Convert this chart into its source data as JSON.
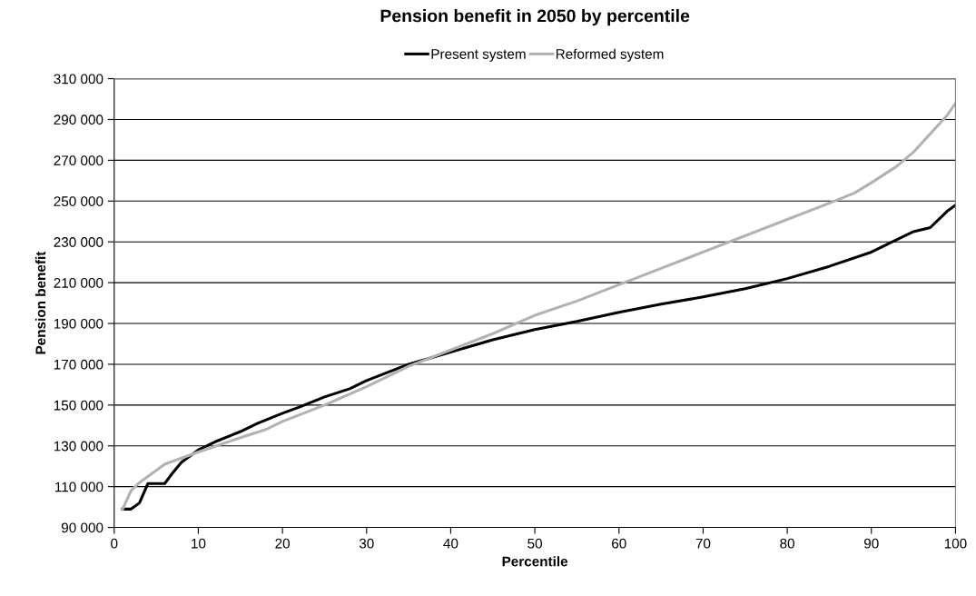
{
  "chart_data": {
    "type": "line",
    "title": "Pension benefit in 2050 by percentile",
    "xlabel": "Percentile",
    "ylabel": "Pension benefit",
    "series": [
      {
        "name": "Present system",
        "color": "#000000",
        "x": [
          1,
          2,
          3,
          4,
          5,
          6,
          7,
          8,
          10,
          12,
          15,
          17,
          20,
          22,
          25,
          28,
          30,
          35,
          40,
          45,
          50,
          55,
          60,
          65,
          70,
          75,
          80,
          85,
          90,
          92,
          95,
          97,
          99,
          100
        ],
        "values": [
          99000,
          99000,
          102000,
          111500,
          111500,
          111500,
          117000,
          122000,
          128000,
          132000,
          137000,
          141000,
          146000,
          149000,
          154000,
          158000,
          162000,
          170000,
          176000,
          182000,
          187000,
          191000,
          195500,
          199500,
          203000,
          207000,
          212000,
          218000,
          225000,
          229000,
          235000,
          237000,
          245000,
          248000
        ]
      },
      {
        "name": "Reformed system",
        "color": "#b2b2b2",
        "x": [
          1,
          2,
          3,
          5,
          6,
          8,
          10,
          15,
          18,
          20,
          25,
          30,
          35,
          40,
          45,
          50,
          55,
          60,
          65,
          70,
          75,
          80,
          85,
          88,
          90,
          93,
          95,
          97,
          99,
          100
        ],
        "values": [
          99000,
          108000,
          112000,
          118000,
          121000,
          124000,
          127000,
          134000,
          138000,
          142000,
          150000,
          159000,
          169000,
          177000,
          185000,
          194000,
          201000,
          209000,
          217000,
          225000,
          233000,
          241000,
          249000,
          254000,
          259000,
          267000,
          274000,
          283000,
          292000,
          298000
        ]
      }
    ],
    "xlim": [
      0,
      100
    ],
    "xticks": [
      0,
      10,
      20,
      30,
      40,
      50,
      60,
      70,
      80,
      90,
      100
    ],
    "ylim": [
      90000,
      310000
    ],
    "yticks": [
      {
        "value": 90000,
        "label": "90 000"
      },
      {
        "value": 110000,
        "label": "110 000"
      },
      {
        "value": 130000,
        "label": "130 000"
      },
      {
        "value": 150000,
        "label": "150 000"
      },
      {
        "value": 170000,
        "label": "170 000"
      },
      {
        "value": 190000,
        "label": "190 000"
      },
      {
        "value": 210000,
        "label": "210 000"
      },
      {
        "value": 230000,
        "label": "230 000"
      },
      {
        "value": 250000,
        "label": "250 000"
      },
      {
        "value": 270000,
        "label": "270 000"
      },
      {
        "value": 290000,
        "label": "290 000"
      },
      {
        "value": 310000,
        "label": "310 000"
      }
    ],
    "grid": "y",
    "legend": "top"
  }
}
